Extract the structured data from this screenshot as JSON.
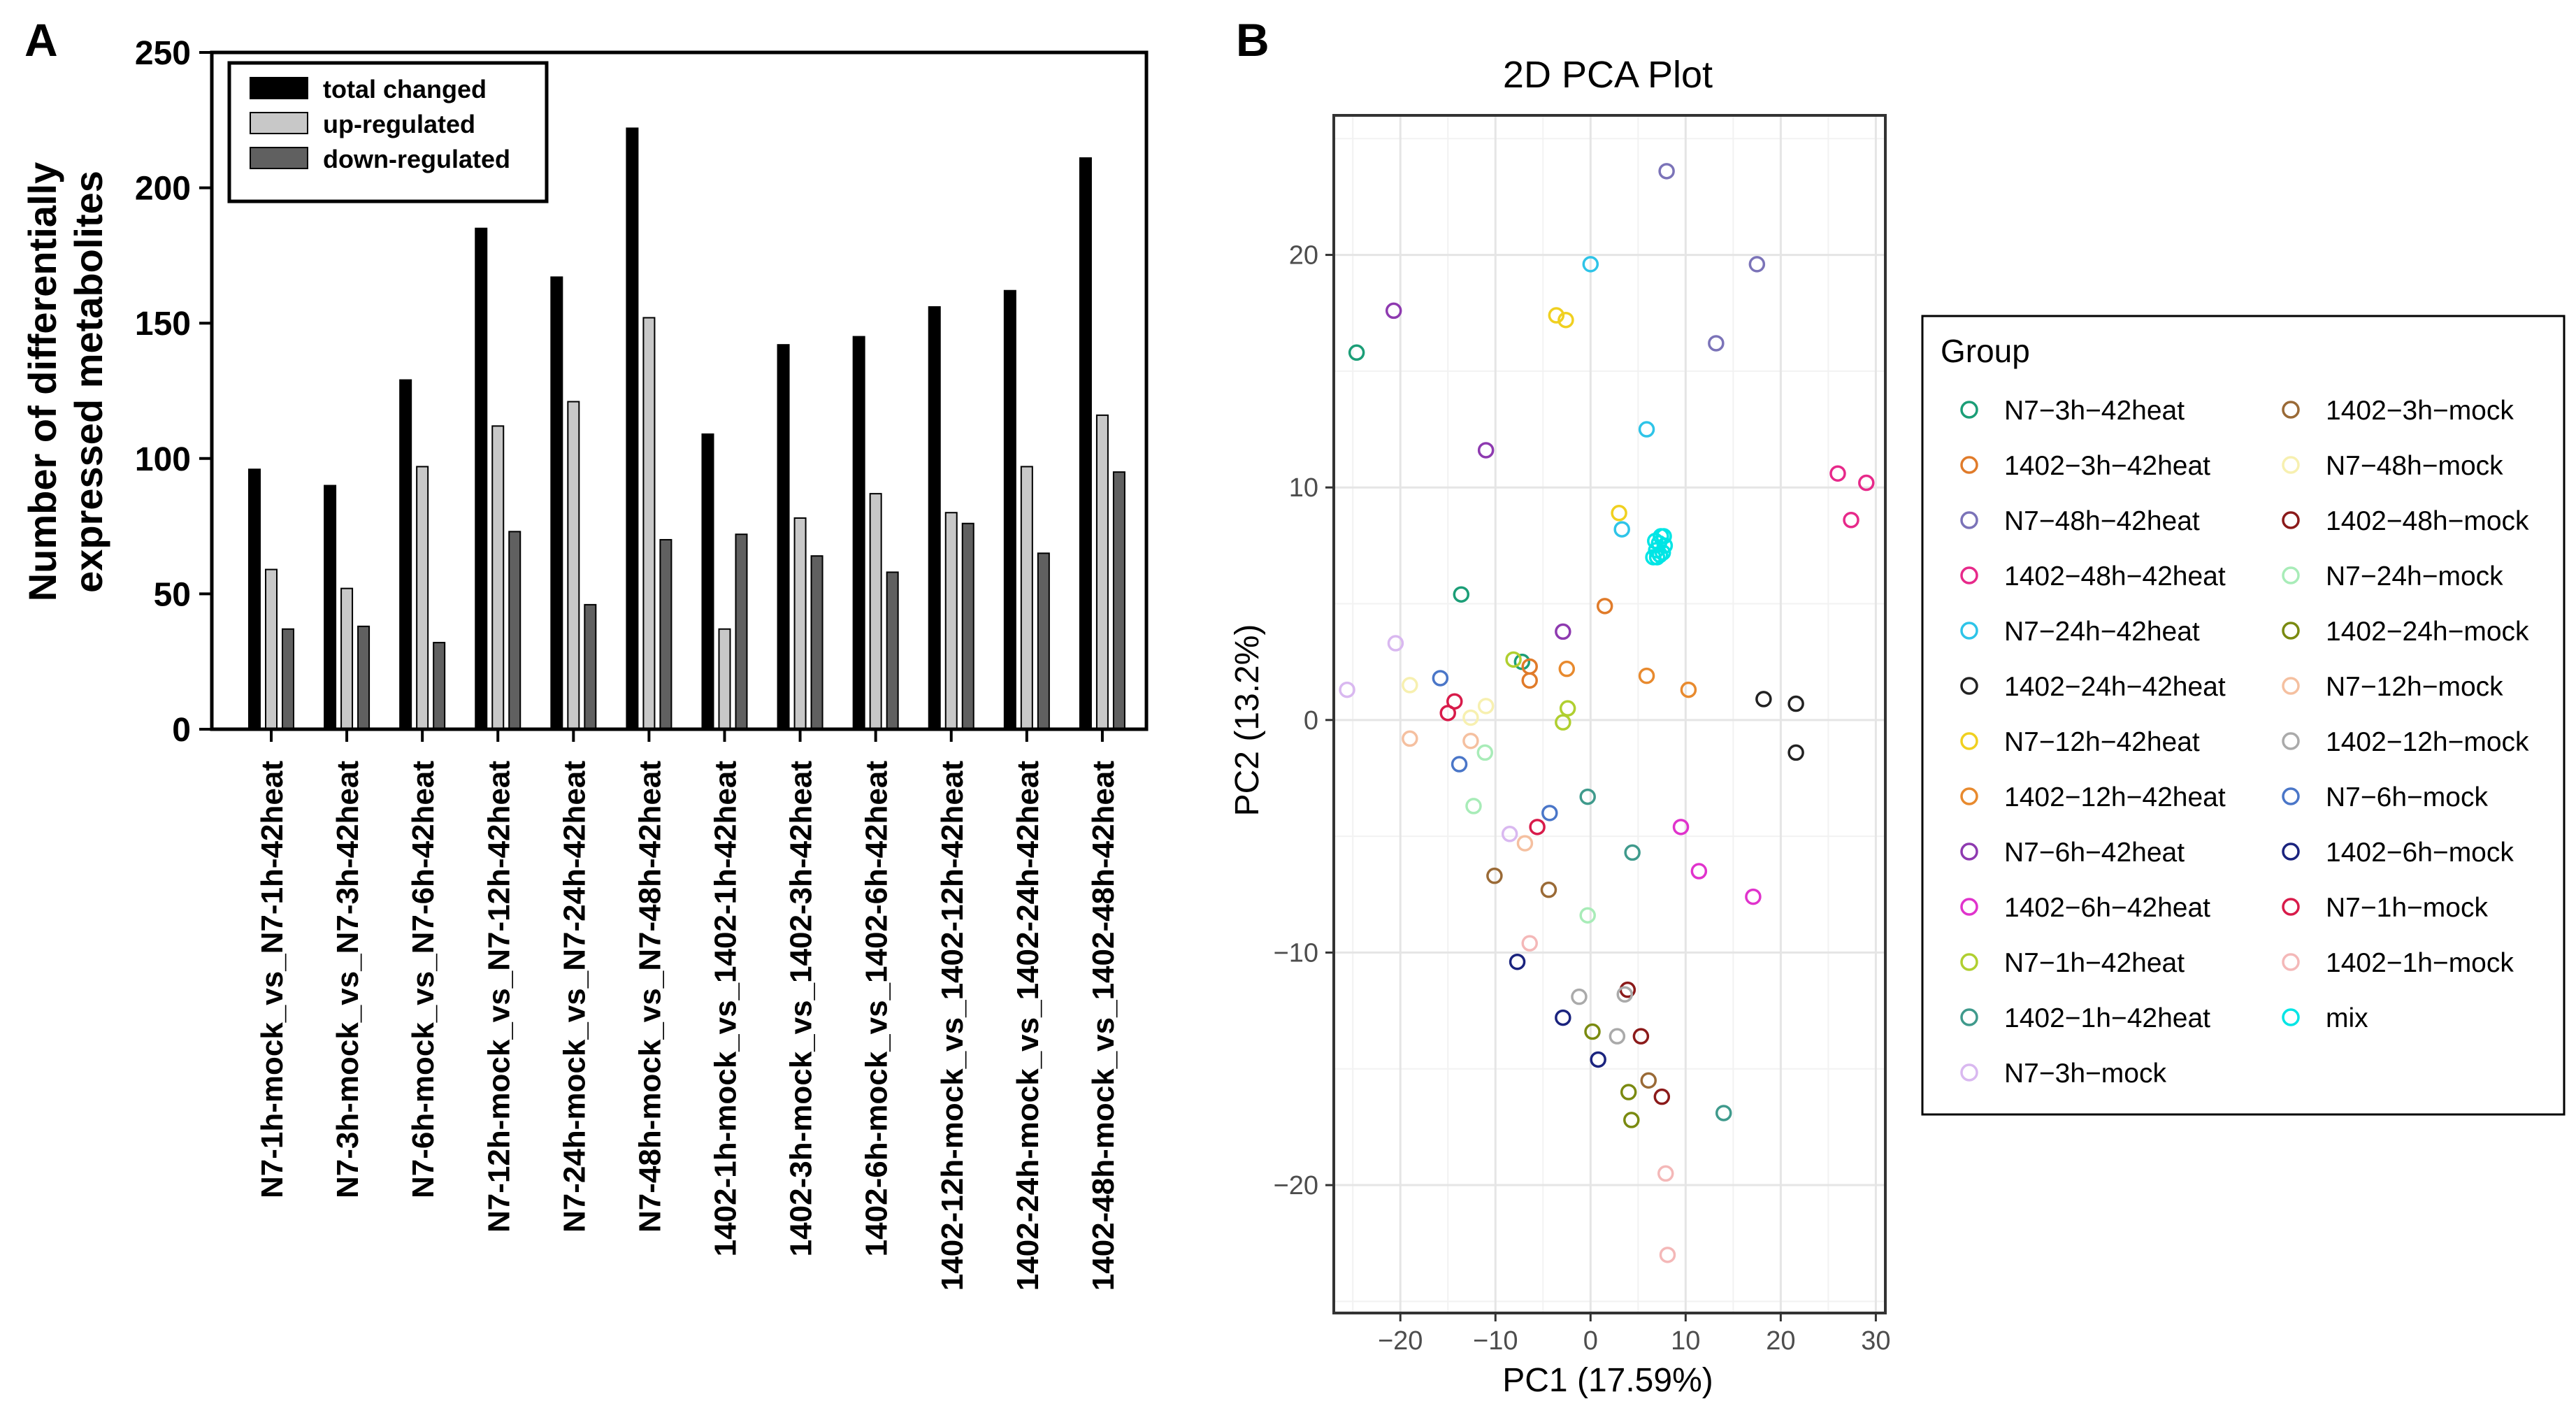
{
  "panel_labels": {
    "a": "A",
    "b": "B"
  },
  "chart_data": [
    {
      "type": "bar",
      "title": "",
      "ylabel_line1": "Number of differentially",
      "ylabel_line2": "expressed metabolites",
      "ylim": [
        0,
        250
      ],
      "yticks": [
        0,
        50,
        100,
        150,
        200,
        250
      ],
      "categories": [
        "N7-1h-mock_vs_N7-1h-42heat",
        "N7-3h-mock_vs_N7-3h-42heat",
        "N7-6h-mock_vs_N7-6h-42heat",
        "N7-12h-mock_vs_N7-12h-42heat",
        "N7-24h-mock_vs_N7-24h-42heat",
        "N7-48h-mock_vs_N7-48h-42heat",
        "1402-1h-mock_vs_1402-1h-42heat",
        "1402-3h-mock_vs_1402-3h-42heat",
        "1402-6h-mock_vs_1402-6h-42heat",
        "1402-12h-mock_vs_1402-12h-42heat",
        "1402-24h-mock_vs_1402-24h-42heat",
        "1402-48h-mock_vs_1402-48h-42heat"
      ],
      "series": [
        {
          "name": "total changed",
          "color": "#000000",
          "values": [
            96,
            90,
            129,
            185,
            167,
            222,
            109,
            142,
            145,
            156,
            162,
            211
          ]
        },
        {
          "name": "up-regulated",
          "color": "#c8c8c8",
          "values": [
            59,
            52,
            97,
            112,
            121,
            152,
            37,
            78,
            87,
            80,
            97,
            116
          ]
        },
        {
          "name": "down-regulated",
          "color": "#606060",
          "values": [
            37,
            38,
            32,
            73,
            46,
            70,
            72,
            64,
            58,
            76,
            65,
            95
          ]
        }
      ],
      "legend_position": "top-left"
    },
    {
      "type": "scatter",
      "title": "2D PCA Plot",
      "xlabel": "PC1 (17.59%)",
      "ylabel": "PC2 (13.2%)",
      "xlim": [
        -27,
        31
      ],
      "ylim": [
        -25.5,
        26
      ],
      "xticks": [
        -20,
        -10,
        0,
        10,
        20,
        30
      ],
      "yticks": [
        -20,
        -10,
        0,
        10,
        20
      ],
      "xtick_labels": [
        "−20",
        "−10",
        "0",
        "10",
        "20",
        "30"
      ],
      "ytick_labels": [
        "−20",
        "−10",
        "0",
        "10",
        "20"
      ],
      "legend_title": "Group",
      "legend_position": "right",
      "groups": [
        {
          "name": "N7−3h−42heat",
          "color": "#1b9e77",
          "points": [
            [
              -24.6,
              15.8
            ],
            [
              -13.6,
              5.4
            ],
            [
              -7.2,
              2.5
            ]
          ]
        },
        {
          "name": "1402−3h−42heat",
          "color": "#e07b2a",
          "points": [
            [
              -6.4,
              2.3
            ],
            [
              -6.4,
              1.7
            ],
            [
              1.5,
              4.9
            ]
          ]
        },
        {
          "name": "N7−48h−42heat",
          "color": "#7b73b8",
          "points": [
            [
              8.0,
              23.6
            ],
            [
              17.5,
              19.6
            ],
            [
              13.2,
              16.2
            ]
          ]
        },
        {
          "name": "1402−48h−42heat",
          "color": "#e7298a",
          "points": [
            [
              26.0,
              10.6
            ],
            [
              29.0,
              10.2
            ],
            [
              27.4,
              8.6
            ]
          ]
        },
        {
          "name": "N7−24h−42heat",
          "color": "#2ec4e8",
          "points": [
            [
              0.0,
              19.6
            ],
            [
              5.9,
              12.5
            ],
            [
              3.3,
              8.2
            ]
          ]
        },
        {
          "name": "1402−24h−42heat",
          "color": "#222222",
          "points": [
            [
              18.2,
              0.9
            ],
            [
              21.6,
              0.7
            ],
            [
              21.6,
              -1.4
            ]
          ]
        },
        {
          "name": "N7−12h−42heat",
          "color": "#f0d020",
          "points": [
            [
              -3.6,
              17.4
            ],
            [
              -2.6,
              17.2
            ],
            [
              3.0,
              8.9
            ]
          ]
        },
        {
          "name": "1402−12h−42heat",
          "color": "#e88a2e",
          "points": [
            [
              -2.5,
              2.2
            ],
            [
              5.9,
              1.9
            ],
            [
              10.3,
              1.3
            ]
          ]
        },
        {
          "name": "N7−6h−42heat",
          "color": "#8e3ab0",
          "points": [
            [
              -20.7,
              17.6
            ],
            [
              -11.0,
              11.6
            ],
            [
              -2.9,
              3.8
            ]
          ]
        },
        {
          "name": "1402−6h−42heat",
          "color": "#e033cc",
          "points": [
            [
              9.5,
              -4.6
            ],
            [
              11.4,
              -6.5
            ],
            [
              17.1,
              -7.6
            ]
          ]
        },
        {
          "name": "N7−1h−42heat",
          "color": "#b0cf30",
          "points": [
            [
              -8.1,
              2.6
            ],
            [
              -2.4,
              0.5
            ],
            [
              -2.9,
              -0.1
            ]
          ]
        },
        {
          "name": "1402−1h−42heat",
          "color": "#3f9a8c",
          "points": [
            [
              -0.3,
              -3.3
            ],
            [
              4.4,
              -5.7
            ],
            [
              14.0,
              -16.9
            ]
          ]
        },
        {
          "name": "N7−3h−mock",
          "color": "#d9b8f0",
          "points": [
            [
              -25.6,
              1.3
            ],
            [
              -20.5,
              3.3
            ],
            [
              -8.5,
              -4.9
            ]
          ]
        },
        {
          "name": "1402−3h−mock",
          "color": "#9a6a36",
          "points": [
            [
              -10.1,
              -6.7
            ],
            [
              -4.4,
              -7.3
            ],
            [
              6.1,
              -15.5
            ]
          ]
        },
        {
          "name": "N7−48h−mock",
          "color": "#f7f0b0",
          "points": [
            [
              -19.0,
              1.5
            ],
            [
              -11.0,
              0.6
            ],
            [
              -12.6,
              0.1
            ]
          ]
        },
        {
          "name": "1402−48h−mock",
          "color": "#8b1a1a",
          "points": [
            [
              3.9,
              -11.6
            ],
            [
              5.3,
              -13.6
            ],
            [
              7.5,
              -16.2
            ]
          ]
        },
        {
          "name": "N7−24h−mock",
          "color": "#a8ecb8",
          "points": [
            [
              -11.1,
              -1.4
            ],
            [
              -12.3,
              -3.7
            ],
            [
              -0.3,
              -8.4
            ]
          ]
        },
        {
          "name": "1402−24h−mock",
          "color": "#7a8a10",
          "points": [
            [
              0.2,
              -13.4
            ],
            [
              4.0,
              -16.0
            ],
            [
              4.3,
              -17.2
            ]
          ]
        },
        {
          "name": "N7−12h−mock",
          "color": "#f5c0a0",
          "points": [
            [
              -19.0,
              -0.8
            ],
            [
              -12.6,
              -0.9
            ],
            [
              -6.9,
              -5.3
            ]
          ]
        },
        {
          "name": "1402−12h−mock",
          "color": "#aaaaaa",
          "points": [
            [
              -1.2,
              -11.9
            ],
            [
              2.8,
              -13.6
            ],
            [
              3.6,
              -11.8
            ]
          ]
        },
        {
          "name": "N7−6h−mock",
          "color": "#4a76c8",
          "points": [
            [
              -15.8,
              1.8
            ],
            [
              -13.8,
              -1.9
            ],
            [
              -4.3,
              -4.0
            ]
          ]
        },
        {
          "name": "1402−6h−mock",
          "color": "#1a237e",
          "points": [
            [
              -7.7,
              -10.4
            ],
            [
              -2.9,
              -12.8
            ],
            [
              0.8,
              -14.6
            ]
          ]
        },
        {
          "name": "N7−1h−mock",
          "color": "#d81b4a",
          "points": [
            [
              -15.0,
              0.3
            ],
            [
              -14.3,
              0.8
            ],
            [
              -5.6,
              -4.6
            ]
          ]
        },
        {
          "name": "1402−1h−mock",
          "color": "#f4b8b8",
          "points": [
            [
              -6.4,
              -9.6
            ],
            [
              7.9,
              -19.5
            ],
            [
              8.1,
              -23.0
            ]
          ]
        },
        {
          "name": "mix",
          "color": "#00e5e5",
          "points": [
            [
              6.6,
              7.0
            ],
            [
              6.9,
              7.3
            ],
            [
              7.2,
              7.6
            ],
            [
              7.4,
              7.9
            ],
            [
              7.6,
              7.2
            ],
            [
              7.0,
              7.0
            ],
            [
              7.8,
              7.5
            ],
            [
              6.8,
              7.7
            ],
            [
              7.3,
              7.1
            ],
            [
              7.7,
              7.9
            ]
          ]
        }
      ]
    }
  ]
}
